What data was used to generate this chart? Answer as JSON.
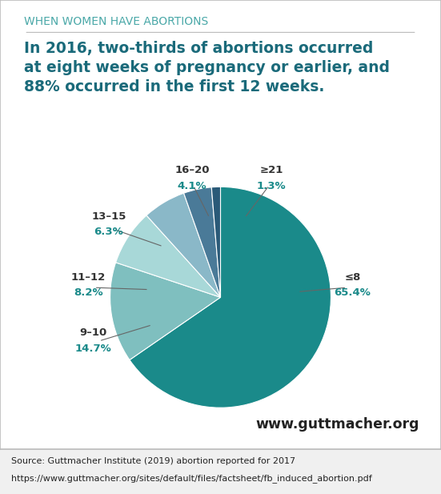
{
  "title": "WHEN WOMEN HAVE ABORTIONS",
  "subtitle": "In 2016, two-thirds of abortions occurred\nat eight weeks of pregnancy or earlier, and\n88% occurred in the first 12 weeks.",
  "slices": [
    65.4,
    14.7,
    8.2,
    6.3,
    4.1,
    1.3
  ],
  "labels": [
    "≤8",
    "9–10",
    "11–12",
    "13–15",
    "16–20",
    "≥21"
  ],
  "colors": [
    "#1a8a8a",
    "#7fbfbf",
    "#a8d8d8",
    "#8ab8c8",
    "#4a7a98",
    "#2a5a78"
  ],
  "title_color": "#4aa8a8",
  "subtitle_color": "#1a6a7a",
  "pct_color": "#1a8a8a",
  "label_color": "#333333",
  "bg_color": "#ffffff",
  "outer_bg": "#f0f0f0",
  "border_color": "#bbbbbb",
  "website": "www.guttmacher.org",
  "source_line1": "Source: Guttmacher Institute (2019) abortion reported for 2017",
  "source_line2": "https://www.guttmacher.org/sites/default/files/factsheet/fb_induced_abortion.pdf"
}
